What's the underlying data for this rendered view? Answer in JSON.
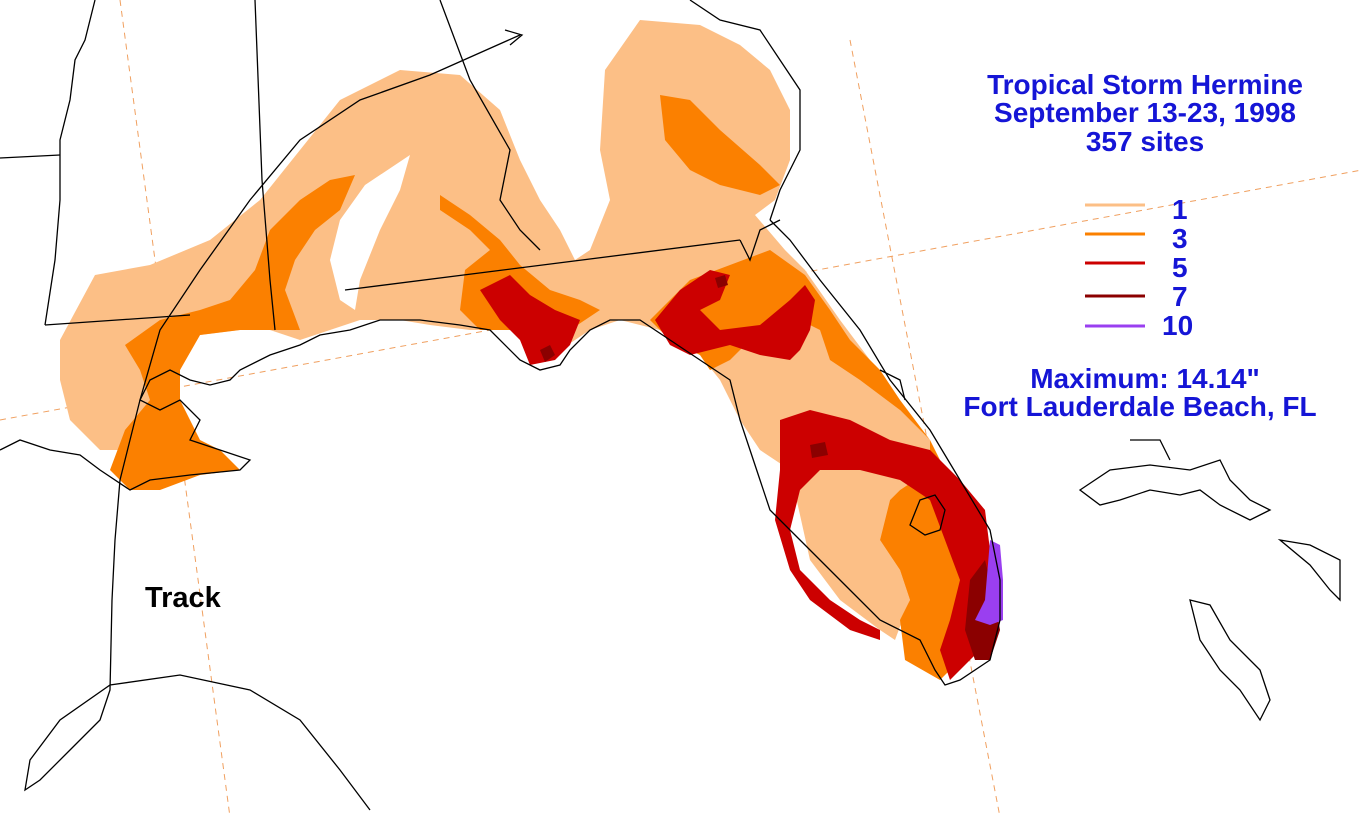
{
  "title": {
    "line1": "Tropical Storm Hermine",
    "line2": "September 13-23, 1998",
    "line3": "357 sites"
  },
  "legend": {
    "items": [
      {
        "value": "1",
        "color": "#fcbf86"
      },
      {
        "value": "3",
        "color": "#fb8000"
      },
      {
        "value": "5",
        "color": "#cc0000"
      },
      {
        "value": "7",
        "color": "#8b0000"
      },
      {
        "value": "10",
        "color": "#9a3ff0"
      }
    ]
  },
  "maximum": {
    "label": "Maximum:  14.14\"",
    "location": "Fort Lauderdale Beach, FL"
  },
  "track_label": "Track",
  "colors": {
    "text": "#1515d6",
    "coast": "#000000",
    "graticule": "#f0a060"
  }
}
